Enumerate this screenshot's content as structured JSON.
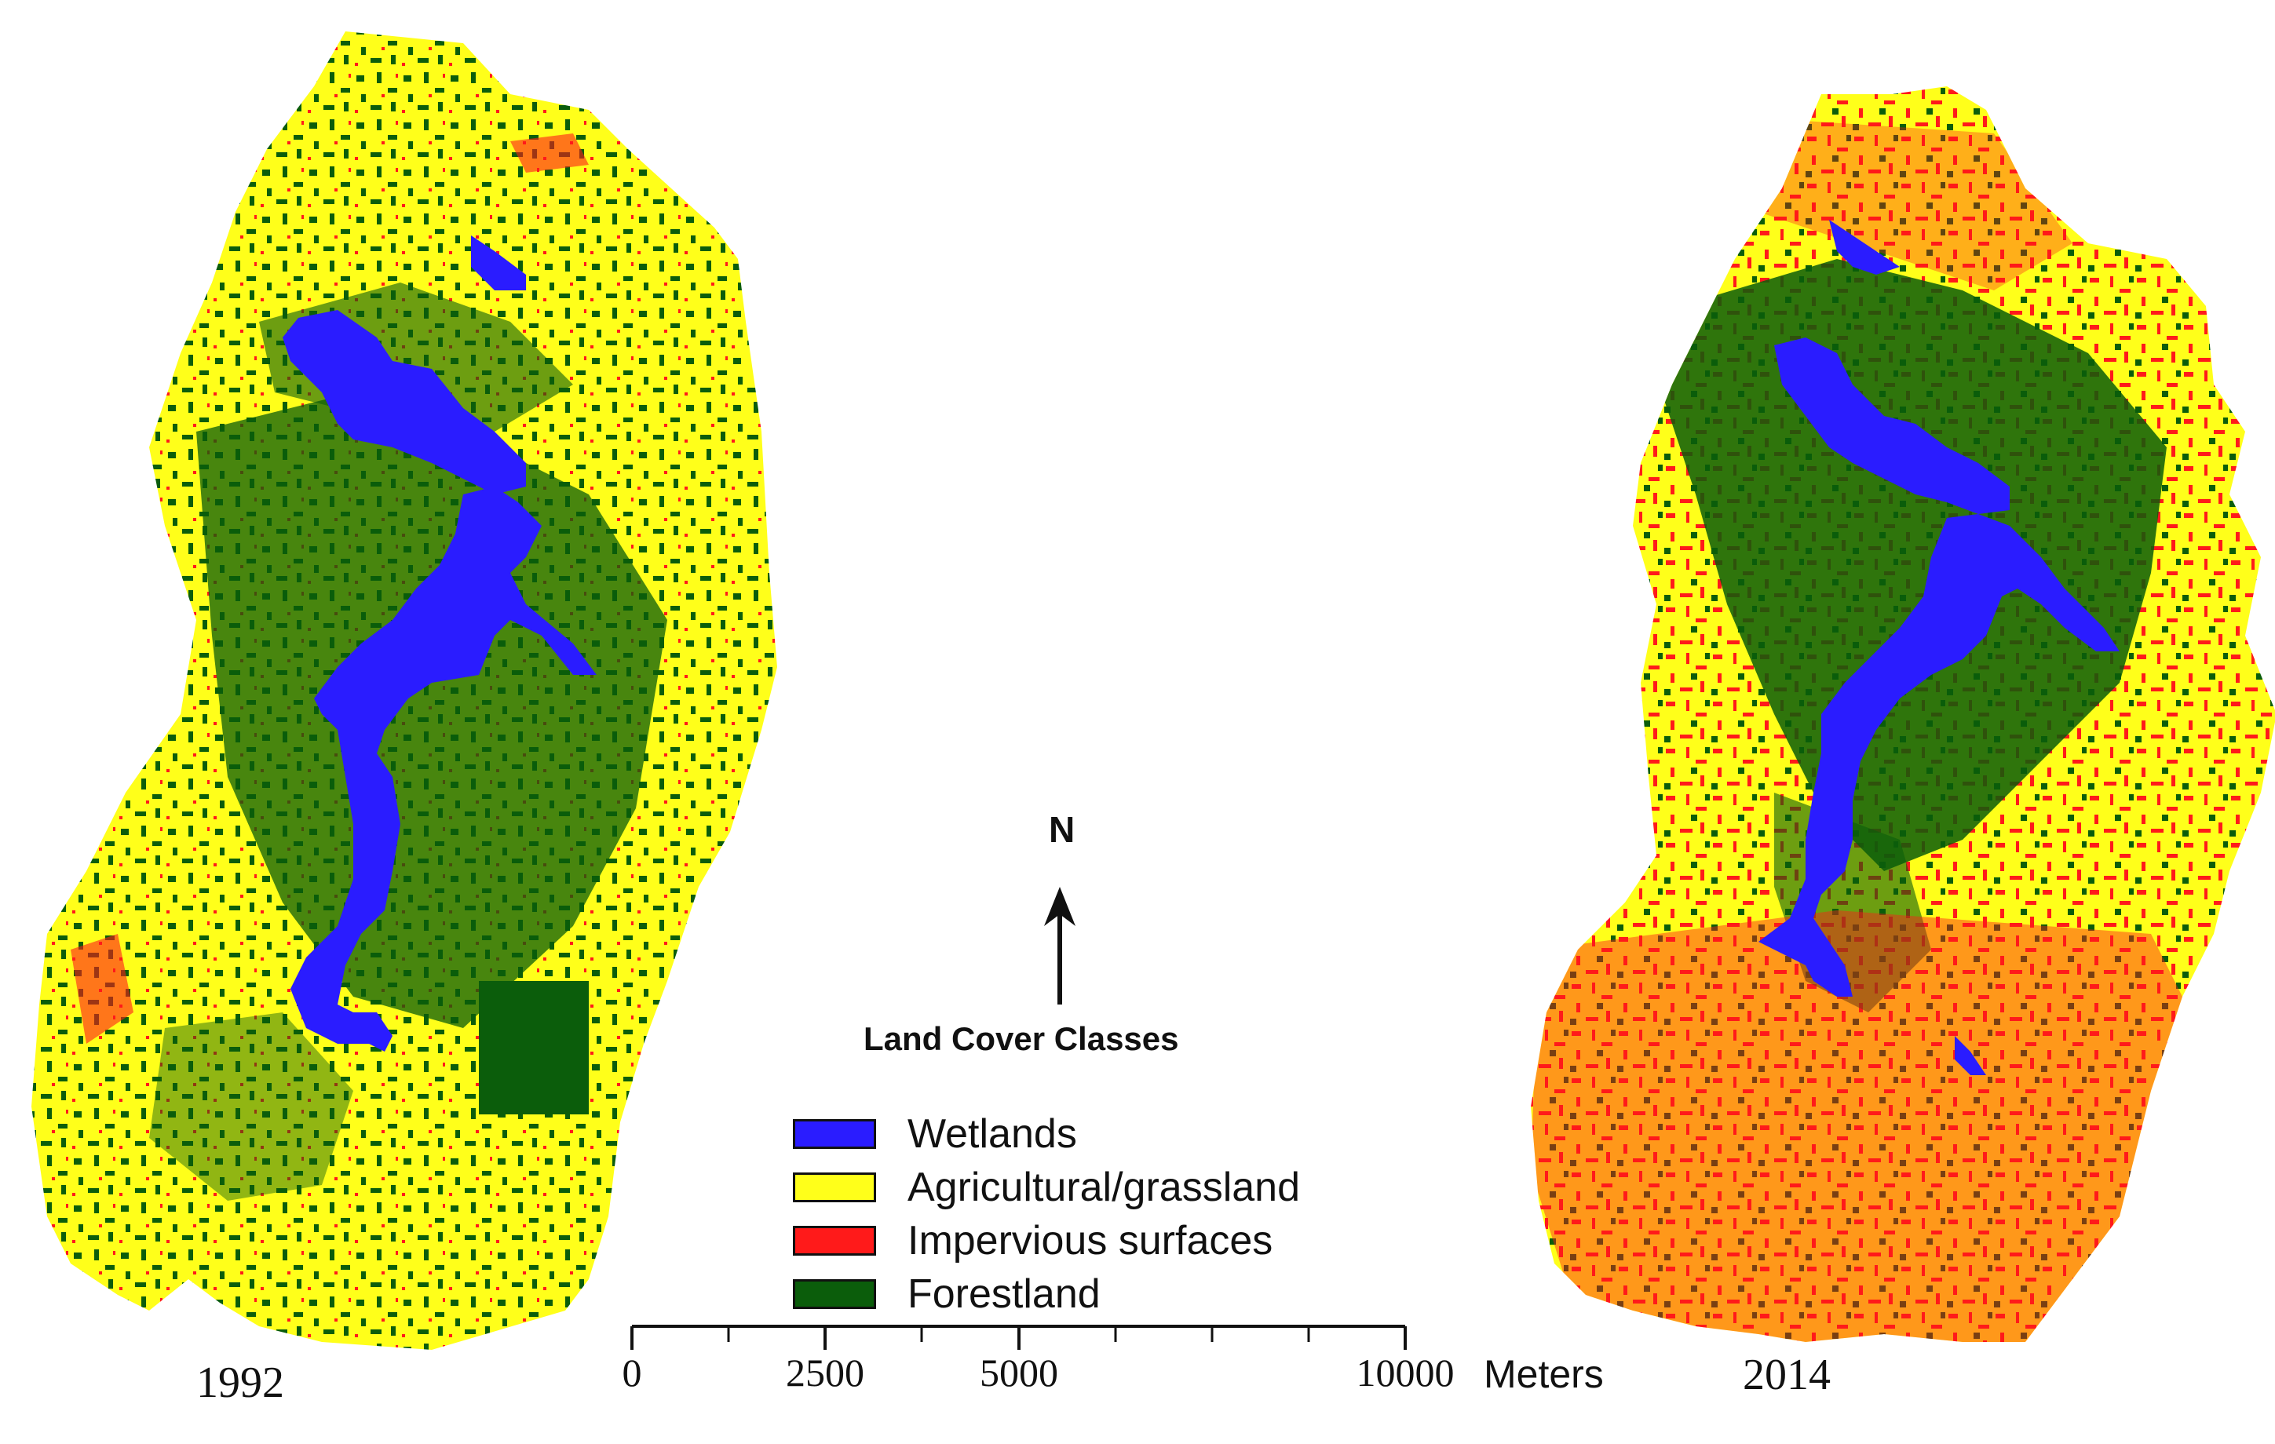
{
  "maps": {
    "left": {
      "year": "1992"
    },
    "right": {
      "year": "2014"
    }
  },
  "north_arrow": {
    "label": "N"
  },
  "legend": {
    "title": "Land Cover Classes",
    "items": [
      {
        "label": "Wetlands",
        "color": "#2a1cff"
      },
      {
        "label": "Agricultural/grassland",
        "color": "#ffff1a"
      },
      {
        "label": "Impervious surfaces",
        "color": "#ff1a1a"
      },
      {
        "label": "Forestland",
        "color": "#0b5d0b"
      }
    ]
  },
  "scale_bar": {
    "labels": [
      "0",
      "2500",
      "5000",
      "10000"
    ],
    "unit": "Meters"
  }
}
